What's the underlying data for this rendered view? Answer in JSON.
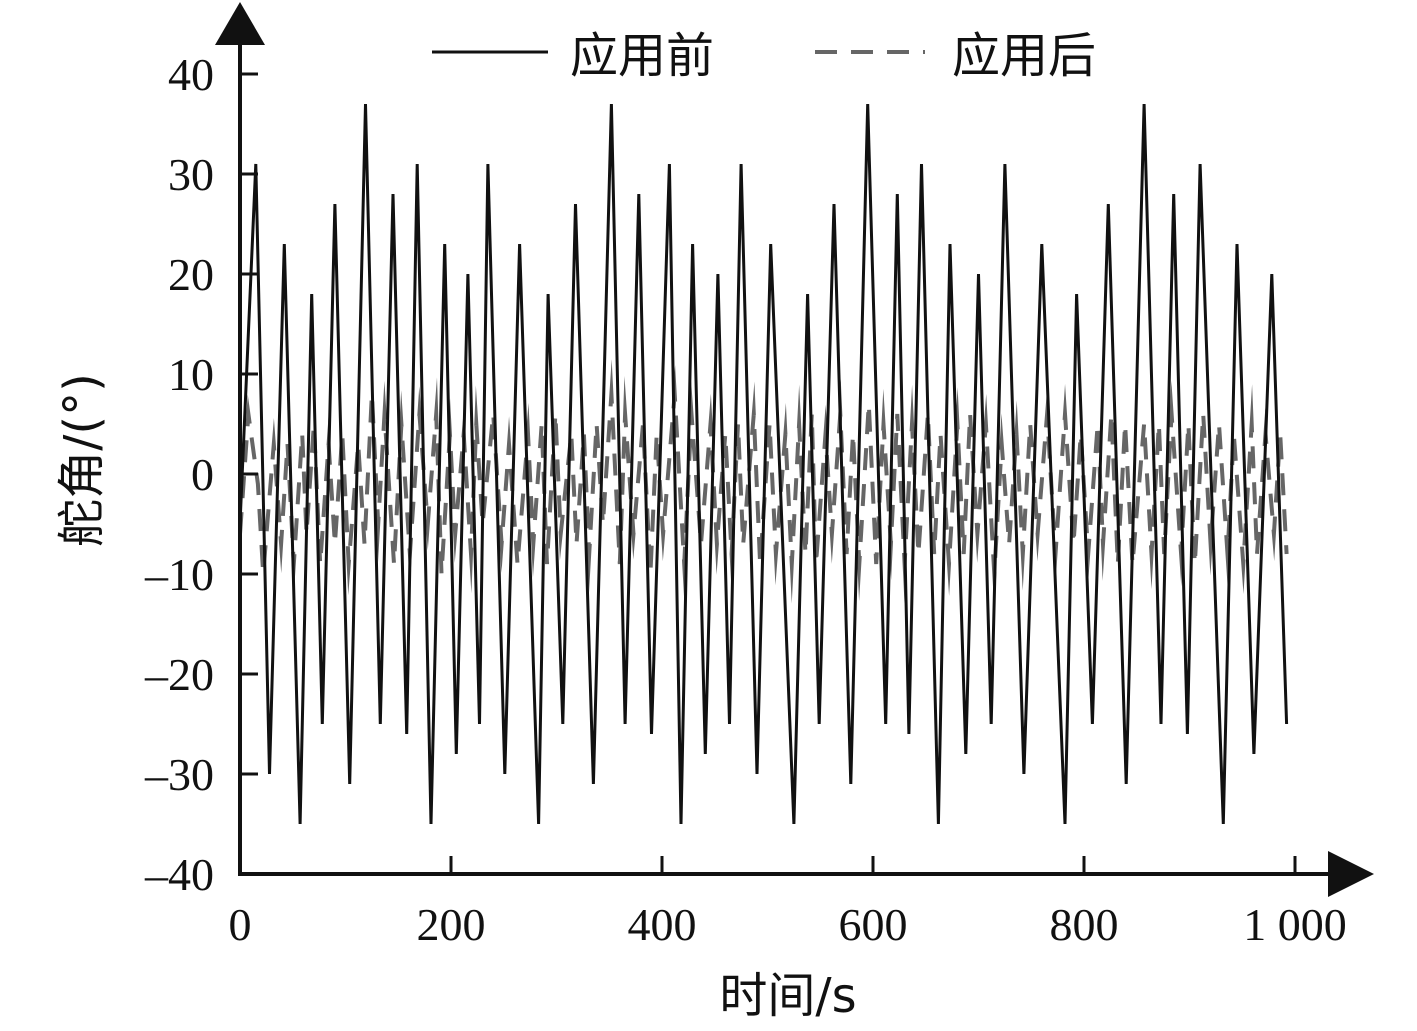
{
  "chart_data": {
    "type": "line",
    "xlabel": "时间/s",
    "ylabel": "舵角/(°)",
    "xlim": [
      0,
      1000
    ],
    "ylim": [
      -40,
      40
    ],
    "x_ticks": [
      0,
      200,
      400,
      600,
      800,
      1000
    ],
    "x_tick_labels": [
      "0",
      "200",
      "400",
      "600",
      "800",
      "1 000"
    ],
    "y_ticks": [
      -40,
      -30,
      -20,
      -10,
      0,
      10,
      20,
      30,
      40
    ],
    "y_tick_labels": [
      "–40",
      "–30",
      "–20",
      "–10",
      "0",
      "10",
      "20",
      "30",
      "40"
    ],
    "grid": false,
    "legend_position": "top",
    "series": [
      {
        "name": "应用前",
        "style": "solid",
        "color": "#111111",
        "points": [
          [
            0,
            -5
          ],
          [
            15,
            31
          ],
          [
            28,
            -30
          ],
          [
            42,
            23
          ],
          [
            57,
            -35
          ],
          [
            68,
            18
          ],
          [
            78,
            -25
          ],
          [
            90,
            27
          ],
          [
            104,
            -31
          ],
          [
            119,
            37
          ],
          [
            133,
            -25
          ],
          [
            145,
            28
          ],
          [
            158,
            -26
          ],
          [
            168,
            31
          ],
          [
            181,
            -35
          ],
          [
            194,
            23
          ],
          [
            205,
            -28
          ],
          [
            216,
            20
          ],
          [
            227,
            -25
          ],
          [
            235,
            31
          ],
          [
            251,
            -30
          ],
          [
            265,
            23
          ],
          [
            283,
            -35
          ],
          [
            292,
            18
          ],
          [
            306,
            -25
          ],
          [
            318,
            27
          ],
          [
            335,
            -31
          ],
          [
            352,
            37
          ],
          [
            365,
            -25
          ],
          [
            378,
            28
          ],
          [
            390,
            -26
          ],
          [
            407,
            31
          ],
          [
            418,
            -35
          ],
          [
            429,
            23
          ],
          [
            441,
            -28
          ],
          [
            453,
            20
          ],
          [
            464,
            -25
          ],
          [
            475,
            31
          ],
          [
            490,
            -30
          ],
          [
            503,
            23
          ],
          [
            525,
            -35
          ],
          [
            538,
            18
          ],
          [
            549,
            -25
          ],
          [
            563,
            27
          ],
          [
            579,
            -31
          ],
          [
            595,
            37
          ],
          [
            612,
            -25
          ],
          [
            623,
            28
          ],
          [
            634,
            -26
          ],
          [
            646,
            31
          ],
          [
            662,
            -35
          ],
          [
            673,
            23
          ],
          [
            688,
            -28
          ],
          [
            700,
            20
          ],
          [
            712,
            -25
          ],
          [
            725,
            31
          ],
          [
            743,
            -30
          ],
          [
            760,
            23
          ],
          [
            782,
            -35
          ],
          [
            793,
            18
          ],
          [
            808,
            -25
          ],
          [
            823,
            27
          ],
          [
            840,
            -31
          ],
          [
            857,
            37
          ],
          [
            873,
            -25
          ],
          [
            885,
            28
          ],
          [
            898,
            -26
          ],
          [
            910,
            31
          ],
          [
            932,
            -35
          ],
          [
            945,
            23
          ],
          [
            961,
            -28
          ],
          [
            978,
            20
          ],
          [
            992,
            -25
          ]
        ]
      },
      {
        "name": "应用后",
        "style": "dashed",
        "color": "#666666",
        "points": [
          [
            0,
            -6
          ],
          [
            8,
            6
          ],
          [
            17,
            -1
          ],
          [
            22,
            -10
          ],
          [
            32,
            3
          ],
          [
            39,
            -7
          ],
          [
            45,
            3
          ],
          [
            51,
            -9
          ],
          [
            59,
            4
          ],
          [
            63,
            -6
          ],
          [
            70,
            5
          ],
          [
            76,
            -9
          ],
          [
            84,
            3
          ],
          [
            90,
            -7
          ],
          [
            97,
            4
          ],
          [
            103,
            -9
          ],
          [
            112,
            3
          ],
          [
            118,
            -7
          ],
          [
            125,
            8
          ],
          [
            131,
            -5
          ],
          [
            137,
            6
          ],
          [
            146,
            -9
          ],
          [
            153,
            5
          ],
          [
            161,
            -8
          ],
          [
            170,
            6
          ],
          [
            178,
            -5
          ],
          [
            186,
            6
          ],
          [
            191,
            -10
          ],
          [
            199,
            4
          ],
          [
            204,
            -6
          ],
          [
            212,
            4
          ],
          [
            219,
            -8
          ],
          [
            224,
            5
          ],
          [
            230,
            -5
          ],
          [
            240,
            6
          ],
          [
            248,
            -7
          ],
          [
            255,
            3
          ],
          [
            263,
            -9
          ],
          [
            273,
            4
          ],
          [
            278,
            -7
          ],
          [
            286,
            5
          ],
          [
            291,
            -9
          ],
          [
            299,
            6
          ],
          [
            304,
            -6
          ],
          [
            314,
            4
          ],
          [
            319,
            -7
          ],
          [
            326,
            4
          ],
          [
            331,
            -8
          ],
          [
            338,
            5
          ],
          [
            344,
            -5
          ],
          [
            352,
            8
          ],
          [
            360,
            -9
          ],
          [
            365,
            6
          ],
          [
            373,
            -6
          ],
          [
            382,
            5
          ],
          [
            389,
            -10
          ],
          [
            395,
            4
          ],
          [
            401,
            -6
          ],
          [
            412,
            8
          ],
          [
            421,
            -9
          ],
          [
            428,
            6
          ],
          [
            437,
            -7
          ],
          [
            446,
            5
          ],
          [
            452,
            -7
          ],
          [
            460,
            4
          ],
          [
            466,
            -8
          ],
          [
            472,
            5
          ],
          [
            477,
            -7
          ],
          [
            487,
            6
          ],
          [
            493,
            -9
          ],
          [
            502,
            5
          ],
          [
            508,
            -8
          ],
          [
            517,
            4
          ],
          [
            523,
            -9
          ],
          [
            530,
            5
          ],
          [
            536,
            -8
          ],
          [
            542,
            6
          ],
          [
            546,
            -9
          ],
          [
            555,
            4
          ],
          [
            561,
            -6
          ],
          [
            569,
            6
          ],
          [
            575,
            -8
          ],
          [
            581,
            4
          ],
          [
            587,
            -9
          ],
          [
            596,
            7
          ],
          [
            603,
            -9
          ],
          [
            610,
            5
          ],
          [
            617,
            -7
          ],
          [
            623,
            6
          ],
          [
            630,
            -9
          ],
          [
            637,
            5
          ],
          [
            643,
            -8
          ],
          [
            652,
            6
          ],
          [
            658,
            -8
          ],
          [
            664,
            4
          ],
          [
            672,
            -9
          ],
          [
            680,
            5
          ],
          [
            686,
            -8
          ],
          [
            692,
            6
          ],
          [
            699,
            -6
          ],
          [
            707,
            5
          ],
          [
            715,
            -10
          ],
          [
            722,
            3
          ],
          [
            729,
            -7
          ],
          [
            736,
            4
          ],
          [
            742,
            -8
          ],
          [
            749,
            5
          ],
          [
            756,
            -6
          ],
          [
            765,
            6
          ],
          [
            773,
            -8
          ],
          [
            782,
            6
          ],
          [
            790,
            -7
          ],
          [
            797,
            4
          ],
          [
            804,
            -8
          ],
          [
            813,
            5
          ],
          [
            818,
            -7
          ],
          [
            826,
            6
          ],
          [
            832,
            -9
          ],
          [
            839,
            5
          ],
          [
            846,
            -9
          ],
          [
            857,
            5
          ],
          [
            864,
            -8
          ],
          [
            871,
            5
          ],
          [
            876,
            -8
          ],
          [
            883,
            6
          ],
          [
            892,
            -8
          ],
          [
            899,
            5
          ],
          [
            905,
            -9
          ],
          [
            913,
            6
          ],
          [
            920,
            -7
          ],
          [
            928,
            5
          ],
          [
            936,
            -8
          ],
          [
            942,
            4
          ],
          [
            951,
            -9
          ],
          [
            959,
            5
          ],
          [
            964,
            -8
          ],
          [
            972,
            4
          ],
          [
            980,
            -6
          ],
          [
            986,
            4
          ],
          [
            992,
            -8
          ]
        ]
      }
    ]
  }
}
